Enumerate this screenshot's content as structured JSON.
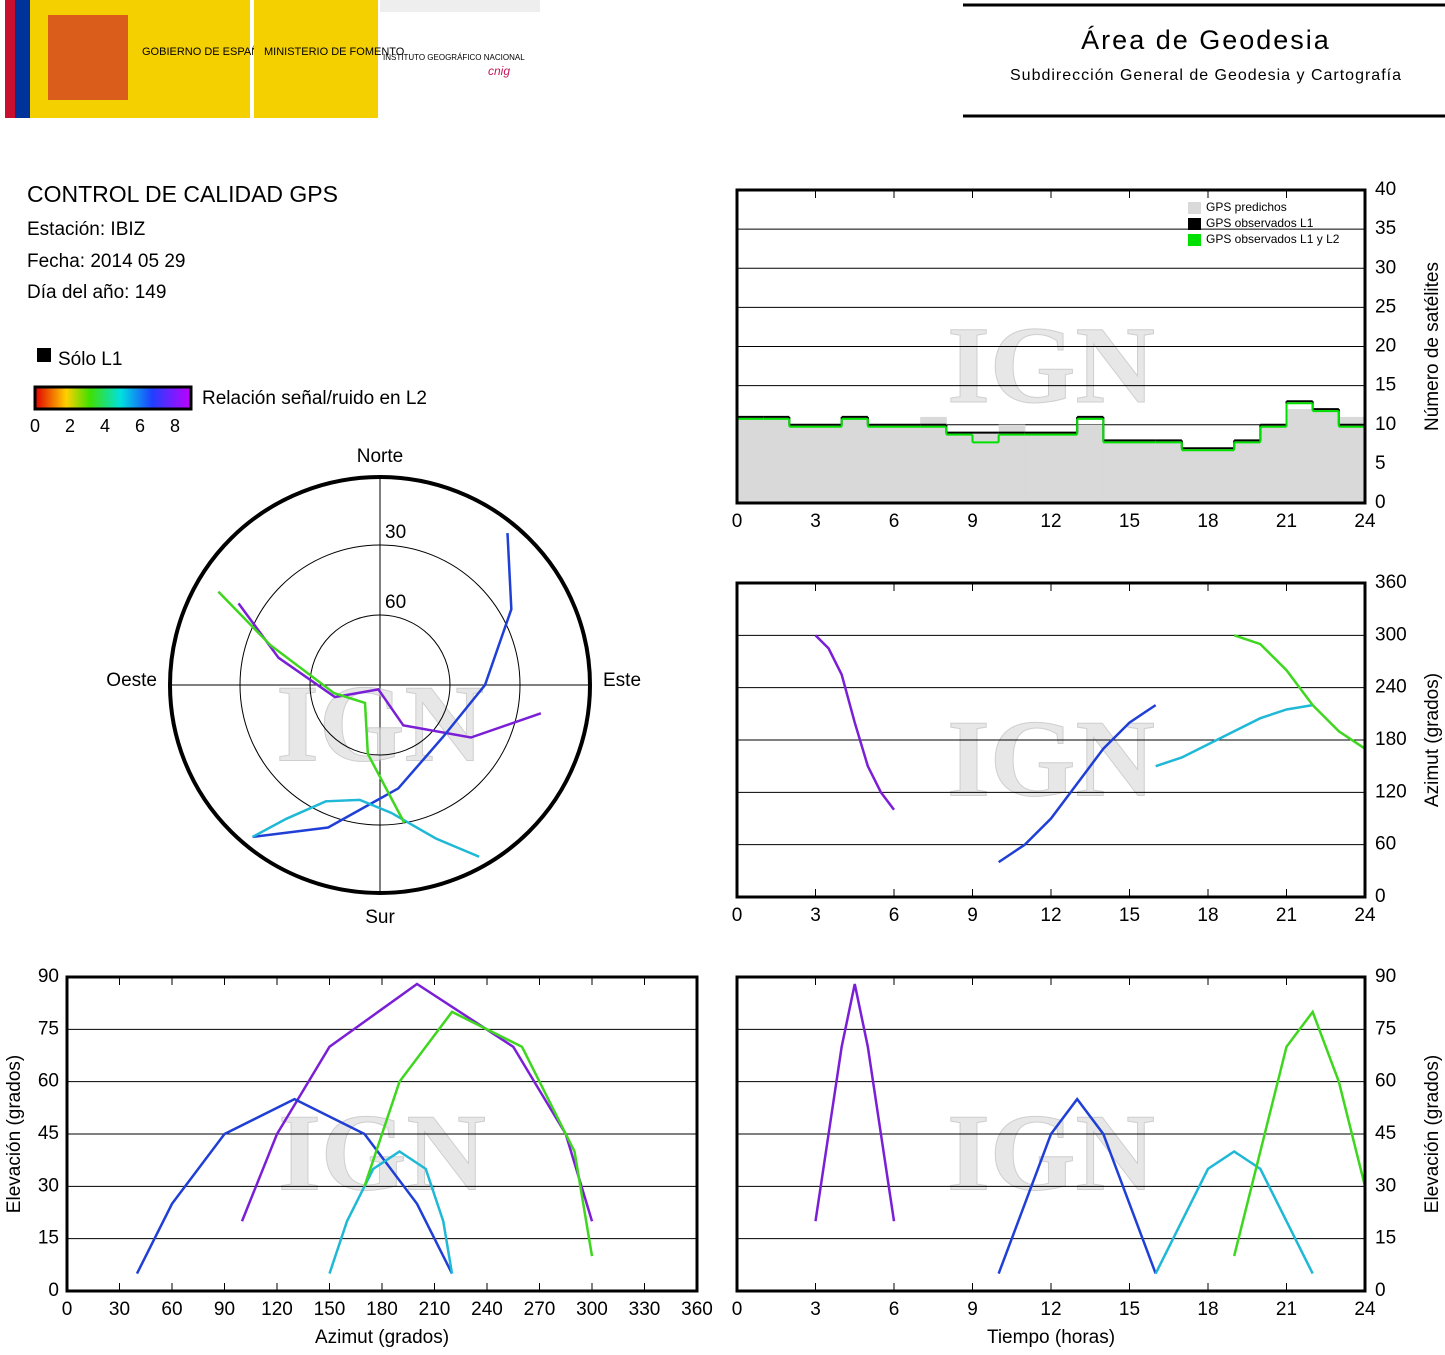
{
  "header": {
    "gov": "GOBIERNO DE ESPAÑA",
    "ministry": "MINISTERIO DE FOMENTO",
    "institute": "INSTITUTO GEOGRÁFICO NACIONAL",
    "cnig": "cnig",
    "area": "Área de Geodesia",
    "subdirectorate": "Subdirección General de Geodesia y Cartografía"
  },
  "info": {
    "title": "CONTROL DE CALIDAD GPS",
    "station": "Estación: IBIZ",
    "date": "Fecha: 2014 05 29",
    "doy": "Día del año: 149",
    "only_l1": "Sólo L1",
    "snr_label": "Relación señal/ruido en L2",
    "snr_ticks": [
      0,
      2,
      4,
      6,
      8
    ]
  },
  "watermark": "IGN",
  "satellite_tracks": [
    {
      "color": "#7a1fd6",
      "time": [
        3,
        3.5,
        4,
        4.5,
        5,
        5.5,
        6
      ],
      "azimuth": [
        300,
        285,
        255,
        200,
        150,
        120,
        100
      ],
      "elevation": [
        20,
        45,
        70,
        88,
        70,
        45,
        20
      ]
    },
    {
      "color": "#1f3fd6",
      "time": [
        10,
        11,
        12,
        13,
        14,
        15,
        16
      ],
      "azimuth": [
        40,
        60,
        90,
        130,
        170,
        200,
        220
      ],
      "elevation": [
        5,
        25,
        45,
        55,
        45,
        25,
        5
      ]
    },
    {
      "color": "#1fb8d6",
      "time": [
        16,
        17,
        18,
        19,
        20,
        21,
        22
      ],
      "azimuth": [
        150,
        160,
        175,
        190,
        205,
        215,
        220
      ],
      "elevation": [
        5,
        20,
        35,
        40,
        35,
        20,
        5
      ]
    },
    {
      "color": "#3fd61f",
      "time": [
        19,
        20,
        21,
        22,
        23,
        24
      ],
      "azimuth": [
        300,
        290,
        260,
        220,
        190,
        170
      ],
      "elevation": [
        10,
        40,
        70,
        80,
        60,
        30
      ]
    }
  ],
  "chart_data": [
    {
      "type": "step",
      "xlim": [
        0,
        24
      ],
      "xticks": [
        0,
        3,
        6,
        9,
        12,
        15,
        18,
        21,
        24
      ],
      "ylim": [
        0,
        40
      ],
      "yticks": [
        0,
        5,
        10,
        15,
        20,
        25,
        30,
        35,
        40
      ],
      "grid": true,
      "ylabel": "Número de satélites",
      "x": [
        0,
        1,
        2,
        3,
        4,
        5,
        6,
        7,
        8,
        9,
        10,
        11,
        12,
        13,
        14,
        15,
        16,
        17,
        18,
        19,
        20,
        21,
        22,
        23
      ],
      "series": [
        {
          "name": "GPS predichos",
          "color": "#d9d9d9",
          "values": [
            11,
            11,
            10,
            10,
            11,
            10,
            10,
            11,
            9,
            9,
            10,
            9,
            9,
            10,
            8,
            8,
            8,
            7,
            7,
            8,
            10,
            12,
            12,
            11
          ]
        },
        {
          "name": "GPS observados L1",
          "color": "#000000",
          "values": [
            11,
            11,
            10,
            10,
            11,
            10,
            10,
            10,
            9,
            9,
            9,
            9,
            9,
            11,
            8,
            8,
            8,
            7,
            7,
            8,
            10,
            13,
            12,
            10
          ]
        },
        {
          "name": "GPS observados L1 y L2",
          "color": "#00e000",
          "values": [
            11,
            11,
            10,
            10,
            11,
            10,
            10,
            10,
            9,
            8,
            9,
            9,
            9,
            11,
            8,
            8,
            8,
            7,
            7,
            8,
            10,
            13,
            12,
            10
          ]
        }
      ]
    },
    {
      "type": "azimuth-time",
      "xlim": [
        0,
        24
      ],
      "xticks": [
        0,
        3,
        6,
        9,
        12,
        15,
        18,
        21,
        24
      ],
      "ylim": [
        0,
        360
      ],
      "yticks": [
        0,
        60,
        120,
        180,
        240,
        300,
        360
      ],
      "grid": true,
      "ylabel": "Azimut (grados)"
    },
    {
      "type": "elevation-azimuth",
      "xlim": [
        0,
        360
      ],
      "xticks": [
        0,
        30,
        60,
        90,
        120,
        150,
        180,
        210,
        240,
        270,
        300,
        330,
        360
      ],
      "ylim": [
        0,
        90
      ],
      "yticks": [
        0,
        15,
        30,
        45,
        60,
        75,
        90
      ],
      "grid": true,
      "xlabel": "Azimut (grados)",
      "ylabel": "Elevación (grados)"
    },
    {
      "type": "elevation-time",
      "xlim": [
        0,
        24
      ],
      "xticks": [
        0,
        3,
        6,
        9,
        12,
        15,
        18,
        21,
        24
      ],
      "ylim": [
        0,
        90
      ],
      "yticks": [
        0,
        15,
        30,
        45,
        60,
        75,
        90
      ],
      "grid": true,
      "xlabel": "Tiempo (horas)",
      "ylabel": "Elevación (grados)"
    },
    {
      "type": "polar",
      "rings": [
        30,
        60
      ],
      "north": "Norte",
      "south": "Sur",
      "east": "Este",
      "west": "Oeste"
    }
  ]
}
